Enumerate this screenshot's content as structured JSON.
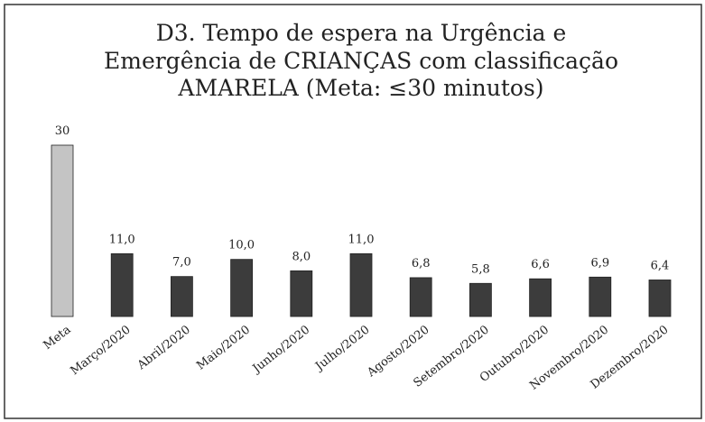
{
  "chart_data": {
    "type": "bar",
    "title": [
      "D3. Tempo de espera na Urgência e",
      "Emergência de CRIANÇAS com classificação",
      "AMARELA (Meta: ≤30 minutos)"
    ],
    "categories": [
      "Meta",
      "Março/2020",
      "Abril/2020",
      "Maio/2020",
      "Junho/2020",
      "Julho/2020",
      "Agosto/2020",
      "Setembro/2020",
      "Outubro/2020",
      "Novembro/2020",
      "Dezembro/2020"
    ],
    "values": [
      30,
      11.0,
      7.0,
      10.0,
      8.0,
      11.0,
      6.8,
      5.8,
      6.6,
      6.9,
      6.4
    ],
    "value_labels": [
      "30",
      "11,0",
      "7,0",
      "10,0",
      "8,0",
      "11,0",
      "6,8",
      "5,8",
      "6,6",
      "6,9",
      "6,4"
    ],
    "colors": [
      "#c4c4c4",
      "#3c3c3c",
      "#3c3c3c",
      "#3c3c3c",
      "#3c3c3c",
      "#3c3c3c",
      "#3c3c3c",
      "#3c3c3c",
      "#3c3c3c",
      "#3c3c3c",
      "#3c3c3c"
    ]
  }
}
